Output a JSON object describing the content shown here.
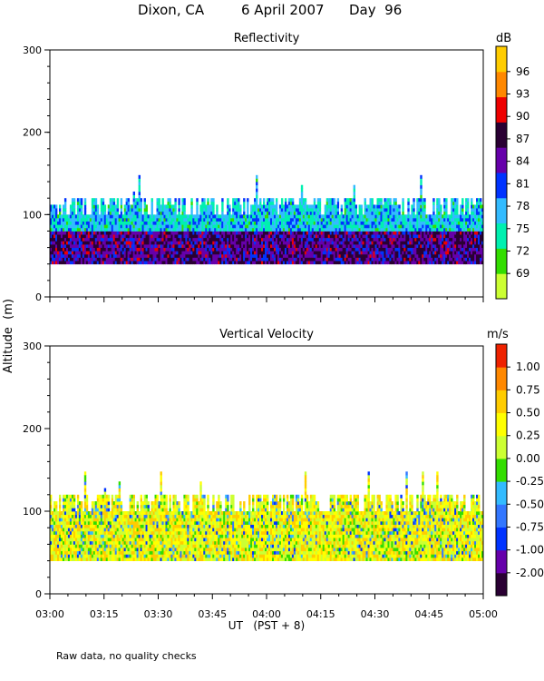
{
  "figure": {
    "title_location": "Dixon, CA",
    "title_date": "6 April 2007",
    "title_day": "Day  96",
    "shared_ylabel": "Altitude  (m)",
    "xlabel": "UT   (PST + 8)",
    "footnote": "Raw data, no quality checks"
  },
  "chart_data": [
    {
      "type": "heatmap",
      "title": "Reflectivity",
      "ylabel": "Altitude  (m)",
      "xlabel": "UT   (PST + 8)",
      "x_ticklabels": [
        "03:00",
        "03:15",
        "03:30",
        "03:45",
        "04:00",
        "04:15",
        "04:30",
        "04:45",
        "05:00"
      ],
      "xlim": [
        "03:00",
        "05:00"
      ],
      "ylim": [
        0,
        300
      ],
      "y_ticks": [
        0,
        100,
        200,
        300
      ],
      "colorbar": {
        "unit": "dB",
        "labels": [
          "96",
          "93",
          "90",
          "87",
          "84",
          "81",
          "78",
          "75",
          "72",
          "69"
        ],
        "bounds": [
          67.5,
          70.5,
          73.5,
          76.5,
          79.5,
          82.5,
          85.5,
          88.5,
          91.5,
          94.5,
          97.5
        ],
        "colors": [
          "#ccff33",
          "#33dd00",
          "#00f0b0",
          "#33bbff",
          "#0033ff",
          "#6600aa",
          "#2a0033",
          "#ee0000",
          "#ff8800",
          "#ffcc00"
        ]
      },
      "data_extent": {
        "altitude_range_m": [
          40,
          120
        ],
        "max_echo_altitude_m": 160,
        "typical_values_dB": "75-87, strongest (84-90) below 80 m, weakest (72-78) near 100-120 m"
      }
    },
    {
      "type": "heatmap",
      "title": "Vertical Velocity",
      "ylabel": "Altitude  (m)",
      "xlabel": "UT   (PST + 8)",
      "x_ticklabels": [
        "03:00",
        "03:15",
        "03:30",
        "03:45",
        "04:00",
        "04:15",
        "04:30",
        "04:45",
        "05:00"
      ],
      "xlim": [
        "03:00",
        "05:00"
      ],
      "ylim": [
        0,
        300
      ],
      "y_ticks": [
        0,
        100,
        200,
        300
      ],
      "colorbar": {
        "unit": "m/s",
        "labels": [
          "1.00",
          "0.75",
          "0.50",
          "0.25",
          "0.00",
          "-0.25",
          "-0.50",
          "-0.75",
          "-1.00",
          "-2.00"
        ],
        "bounds": [
          -2.5,
          -1.5,
          -0.875,
          -0.625,
          -0.375,
          -0.125,
          0.125,
          0.375,
          0.625,
          0.875,
          1.125,
          1.375
        ],
        "colors": [
          "#2a0033",
          "#6600aa",
          "#0033ff",
          "#3377ff",
          "#33bbff",
          "#33dd00",
          "#ccff33",
          "#ffff00",
          "#ffcc00",
          "#ff8800",
          "#ee2200"
        ]
      },
      "data_extent": {
        "altitude_range_m": [
          40,
          120
        ],
        "max_echo_altitude_m": 160,
        "typical_values_m_s": "mostly 0.00 to 0.75, patches of -0.25 to -1.00"
      }
    }
  ]
}
